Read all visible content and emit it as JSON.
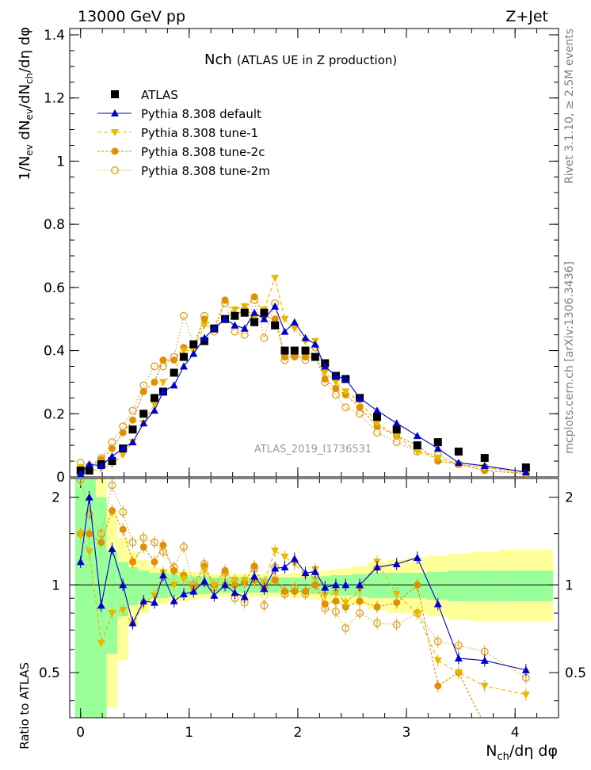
{
  "header": {
    "left": "13000 GeV pp",
    "right": "Z+Jet"
  },
  "side_labels": {
    "rivet": "Rivet 3.1.10, ≥ 2.5M events",
    "mcplots": "mcplots.cern.ch [arXiv:1306.3436]"
  },
  "chart_data": [
    {
      "type": "scatter",
      "panel": "main",
      "title_main": "Nch",
      "title_sub": "(ATLAS UE in Z production)",
      "ylabel": "1/N_ev dN_ev/dN_ch/dη dφ",
      "watermark": "ATLAS_2019_I1736531",
      "xlim": [
        -0.1,
        4.4
      ],
      "ylim": [
        0,
        1.42
      ],
      "yticks": [
        0,
        0.2,
        0.4,
        0.6,
        0.8,
        1,
        1.2,
        1.4
      ],
      "ytick_labels": [
        "0",
        "0.2",
        "0.4",
        "0.6",
        "0.8",
        "1",
        "1.2",
        "1.4"
      ],
      "legend_position": "top-left",
      "legend": [
        {
          "label": "ATLAS",
          "color": "#000000",
          "marker": "square"
        },
        {
          "label": "Pythia 8.308 default",
          "color": "#0000cc",
          "marker": "triangle-up"
        },
        {
          "label": "Pythia 8.308 tune-1",
          "color": "#e6b800",
          "marker": "triangle-down"
        },
        {
          "label": "Pythia 8.308 tune-2c",
          "color": "#e09000",
          "marker": "circle"
        },
        {
          "label": "Pythia 8.308 tune-2m",
          "color": "#e0a020",
          "marker": "open-circle"
        }
      ],
      "x": [
        0.0,
        0.08,
        0.19,
        0.29,
        0.39,
        0.48,
        0.58,
        0.68,
        0.76,
        0.86,
        0.95,
        1.04,
        1.14,
        1.23,
        1.33,
        1.42,
        1.51,
        1.6,
        1.69,
        1.79,
        1.88,
        1.97,
        2.07,
        2.16,
        2.25,
        2.35,
        2.44,
        2.57,
        2.73,
        2.91,
        3.1,
        3.29,
        3.48,
        3.72,
        4.1
      ],
      "series": [
        {
          "name": "ATLAS",
          "values": [
            0.02,
            0.02,
            0.04,
            0.05,
            0.09,
            0.15,
            0.2,
            0.25,
            0.27,
            0.33,
            0.38,
            0.42,
            0.43,
            0.47,
            0.5,
            0.51,
            0.52,
            0.49,
            0.52,
            0.48,
            0.4,
            0.4,
            0.4,
            0.38,
            0.36,
            0.32,
            0.31,
            0.25,
            0.19,
            0.15,
            0.1,
            0.11,
            0.08,
            0.06,
            0.03
          ]
        },
        {
          "name": "Pythia 8.308 default",
          "values": [
            0.01,
            0.04,
            0.035,
            0.065,
            0.09,
            0.11,
            0.17,
            0.21,
            0.27,
            0.29,
            0.35,
            0.39,
            0.44,
            0.47,
            0.5,
            0.48,
            0.47,
            0.52,
            0.5,
            0.54,
            0.46,
            0.49,
            0.44,
            0.42,
            0.35,
            0.32,
            0.31,
            0.25,
            0.21,
            0.17,
            0.13,
            0.09,
            0.045,
            0.035,
            0.015
          ]
        },
        {
          "name": "Pythia 8.308 tune-1",
          "values": [
            0.03,
            0.02,
            0.025,
            0.04,
            0.07,
            0.11,
            0.17,
            0.23,
            0.3,
            0.33,
            0.4,
            0.4,
            0.48,
            0.47,
            0.5,
            0.53,
            0.54,
            0.5,
            0.53,
            0.63,
            0.5,
            0.47,
            0.43,
            0.43,
            0.33,
            0.3,
            0.27,
            0.24,
            0.17,
            0.13,
            0.08,
            0.06,
            0.04,
            0.03,
            0.015
          ]
        },
        {
          "name": "Pythia 8.308 tune-2c",
          "values": [
            0.02,
            0.03,
            0.055,
            0.09,
            0.14,
            0.18,
            0.27,
            0.3,
            0.37,
            0.37,
            0.41,
            0.41,
            0.5,
            0.47,
            0.56,
            0.51,
            0.53,
            0.57,
            0.51,
            0.5,
            0.38,
            0.38,
            0.38,
            0.38,
            0.31,
            0.28,
            0.26,
            0.22,
            0.16,
            0.13,
            0.1,
            0.05,
            0.04,
            0.02,
            0.01
          ]
        },
        {
          "name": "Pythia 8.308 tune-2m",
          "values": [
            0.045,
            0.035,
            0.06,
            0.11,
            0.16,
            0.21,
            0.29,
            0.35,
            0.35,
            0.38,
            0.51,
            0.42,
            0.51,
            0.46,
            0.55,
            0.46,
            0.45,
            0.56,
            0.44,
            0.55,
            0.37,
            0.39,
            0.37,
            0.41,
            0.3,
            0.26,
            0.22,
            0.2,
            0.14,
            0.11,
            0.08,
            0.07,
            0.04,
            0.03,
            0.01
          ]
        }
      ]
    },
    {
      "type": "scatter",
      "panel": "ratio",
      "xlabel": "N_ch/dη dφ",
      "ylabel": "Ratio to ATLAS",
      "xlim": [
        -0.1,
        4.4
      ],
      "ylim": [
        0.35,
        2.32
      ],
      "xticks": [
        0,
        1,
        2,
        3,
        4
      ],
      "xtick_labels": [
        "0",
        "1",
        "2",
        "3",
        "4"
      ],
      "yticks": [
        0.5,
        1,
        2
      ],
      "ytick_labels": [
        "0.5",
        "1",
        "2"
      ],
      "bands": {
        "inner_color": "#99ff99",
        "outer_color": "#ffff99",
        "x_edges": [
          -0.05,
          0.14,
          0.24,
          0.34,
          0.44,
          0.53,
          0.63,
          0.72,
          0.81,
          0.9,
          1.0,
          1.09,
          1.18,
          1.28,
          1.37,
          1.46,
          1.55,
          1.65,
          1.74,
          1.83,
          1.93,
          2.02,
          2.11,
          2.21,
          2.3,
          2.39,
          2.5,
          2.64,
          2.82,
          3.0,
          3.19,
          3.38,
          3.59,
          3.85,
          4.35
        ],
        "inner": [
          [
            0.35,
            2.32
          ],
          [
            0.35,
            2.0
          ],
          [
            0.58,
            1.3
          ],
          [
            0.78,
            1.2
          ],
          [
            0.85,
            1.15
          ],
          [
            0.88,
            1.12
          ],
          [
            0.9,
            1.1
          ],
          [
            0.9,
            1.1
          ],
          [
            0.91,
            1.09
          ],
          [
            0.92,
            1.08
          ],
          [
            0.93,
            1.07
          ],
          [
            0.93,
            1.07
          ],
          [
            0.94,
            1.06
          ],
          [
            0.94,
            1.06
          ],
          [
            0.94,
            1.06
          ],
          [
            0.94,
            1.06
          ],
          [
            0.94,
            1.06
          ],
          [
            0.94,
            1.06
          ],
          [
            0.94,
            1.06
          ],
          [
            0.94,
            1.06
          ],
          [
            0.94,
            1.06
          ],
          [
            0.94,
            1.06
          ],
          [
            0.93,
            1.07
          ],
          [
            0.93,
            1.07
          ],
          [
            0.92,
            1.08
          ],
          [
            0.92,
            1.08
          ],
          [
            0.91,
            1.09
          ],
          [
            0.9,
            1.1
          ],
          [
            0.9,
            1.1
          ],
          [
            0.9,
            1.1
          ],
          [
            0.89,
            1.11
          ],
          [
            0.88,
            1.12
          ],
          [
            0.88,
            1.12
          ],
          [
            0.88,
            1.12
          ]
        ],
        "outer": [
          [
            0.35,
            2.32
          ],
          [
            0.35,
            2.32
          ],
          [
            0.38,
            1.8
          ],
          [
            0.55,
            1.45
          ],
          [
            0.72,
            1.3
          ],
          [
            0.8,
            1.22
          ],
          [
            0.85,
            1.16
          ],
          [
            0.86,
            1.14
          ],
          [
            0.87,
            1.13
          ],
          [
            0.88,
            1.12
          ],
          [
            0.89,
            1.11
          ],
          [
            0.9,
            1.1
          ],
          [
            0.91,
            1.09
          ],
          [
            0.91,
            1.09
          ],
          [
            0.91,
            1.09
          ],
          [
            0.91,
            1.09
          ],
          [
            0.91,
            1.09
          ],
          [
            0.91,
            1.09
          ],
          [
            0.91,
            1.09
          ],
          [
            0.91,
            1.09
          ],
          [
            0.9,
            1.1
          ],
          [
            0.9,
            1.1
          ],
          [
            0.89,
            1.11
          ],
          [
            0.88,
            1.12
          ],
          [
            0.87,
            1.13
          ],
          [
            0.86,
            1.14
          ],
          [
            0.85,
            1.16
          ],
          [
            0.82,
            1.2
          ],
          [
            0.8,
            1.22
          ],
          [
            0.8,
            1.24
          ],
          [
            0.78,
            1.26
          ],
          [
            0.76,
            1.28
          ],
          [
            0.75,
            1.3
          ],
          [
            0.75,
            1.32
          ]
        ]
      },
      "series": [
        {
          "name": "Pythia 8.308 default",
          "values": [
            1.2,
            2.0,
            0.85,
            1.33,
            1.0,
            0.74,
            0.88,
            0.87,
            1.08,
            0.88,
            0.93,
            0.95,
            1.03,
            0.92,
            1.0,
            0.94,
            0.91,
            1.07,
            0.97,
            1.14,
            1.15,
            1.23,
            1.1,
            1.11,
            0.98,
            1.0,
            1.0,
            1.0,
            1.15,
            1.18,
            1.24,
            0.86,
            0.56,
            0.55,
            0.51
          ]
        },
        {
          "name": "Pythia 8.308 tune-1",
          "values": [
            1.5,
            1.3,
            0.63,
            0.8,
            0.82,
            0.73,
            0.86,
            0.92,
            1.1,
            1.0,
            1.05,
            0.95,
            1.12,
            1.0,
            1.0,
            1.04,
            1.04,
            1.02,
            1.02,
            1.31,
            1.25,
            1.18,
            1.08,
            1.13,
            0.92,
            0.94,
            0.87,
            0.96,
            1.2,
            0.93,
            0.8,
            0.55,
            0.5,
            0.45,
            0.42
          ]
        },
        {
          "name": "Pythia 8.308 tune-2c",
          "values": [
            1.5,
            1.5,
            1.4,
            1.8,
            1.55,
            1.2,
            1.35,
            1.2,
            1.37,
            1.12,
            1.08,
            0.98,
            1.16,
            1.0,
            1.12,
            1.0,
            1.02,
            1.16,
            0.98,
            1.04,
            0.95,
            0.95,
            0.95,
            1.0,
            0.86,
            0.88,
            0.84,
            0.88,
            0.84,
            0.87,
            1.0,
            0.45,
            0.5,
            0.33,
            0.33
          ]
        },
        {
          "name": "Pythia 8.308 tune-2m",
          "values": [
            2.3,
            1.75,
            1.5,
            2.2,
            1.78,
            1.4,
            1.45,
            1.4,
            1.3,
            1.15,
            1.35,
            1.0,
            1.18,
            0.98,
            1.1,
            0.9,
            0.87,
            1.14,
            0.85,
            1.15,
            0.93,
            0.98,
            0.93,
            1.08,
            0.83,
            0.81,
            0.71,
            0.8,
            0.74,
            0.73,
            0.8,
            0.64,
            0.62,
            0.59,
            0.48
          ]
        }
      ]
    }
  ]
}
